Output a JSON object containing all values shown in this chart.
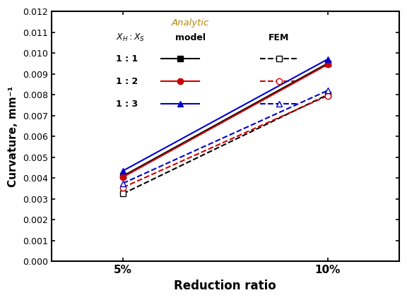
{
  "x_ticks": [
    "5%",
    "10%"
  ],
  "x_values": [
    0,
    1
  ],
  "analytic": {
    "1:1": {
      "values": [
        0.0041,
        0.0095
      ]
    },
    "1:2": {
      "values": [
        0.00405,
        0.00945
      ]
    },
    "1:3": {
      "values": [
        0.00435,
        0.0097
      ]
    }
  },
  "fem": {
    "1:1": {
      "values": [
        0.00325,
        0.008
      ]
    },
    "1:2": {
      "values": [
        0.00355,
        0.00795
      ]
    },
    "1:3": {
      "values": [
        0.00375,
        0.0082
      ]
    }
  },
  "ylabel": "Curvature, mm⁻¹",
  "xlabel": "Reduction ratio",
  "ylim": [
    0.0,
    0.012
  ],
  "yticks": [
    0.0,
    0.001,
    0.002,
    0.003,
    0.004,
    0.005,
    0.006,
    0.007,
    0.008,
    0.009,
    0.01,
    0.011,
    0.012
  ],
  "colors": [
    "#000000",
    "#cc0000",
    "#0000cc"
  ],
  "markers_solid": [
    "s",
    "o",
    "^"
  ],
  "markers_open": [
    "s",
    "o",
    "^"
  ],
  "ratio_labels": [
    "1 : 1",
    "1 : 2",
    "1 : 3"
  ],
  "legend_analytic_color": "#B8860B",
  "figsize": [
    5.76,
    4.25
  ],
  "dpi": 100
}
